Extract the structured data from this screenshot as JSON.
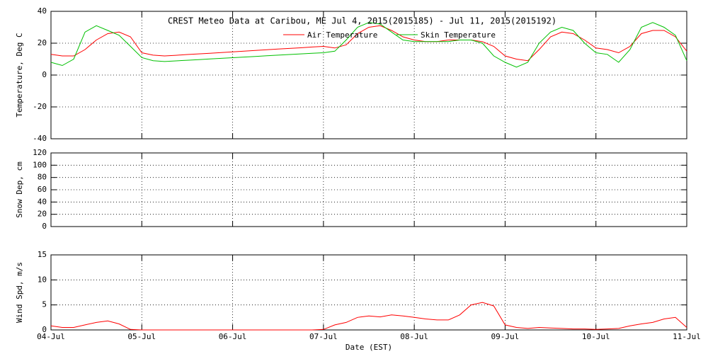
{
  "chart_data": [
    {
      "type": "line",
      "title": "CREST Meteo Data at Caribou, ME   Jul  4, 2015(2015185) - Jul 11, 2015(2015192)",
      "ylabel": "Temperature, Deg C",
      "ylim": [
        -40,
        40
      ],
      "yticks": [
        -40,
        -20,
        0,
        20,
        40
      ],
      "xlim": [
        0,
        7
      ],
      "grid": true,
      "legend": "top",
      "x": [
        0,
        0.125,
        0.25,
        0.375,
        0.5,
        0.625,
        0.75,
        0.875,
        1,
        1.125,
        1.25,
        1.375,
        1.5,
        1.625,
        1.75,
        1.875,
        2,
        2.125,
        2.25,
        2.375,
        2.5,
        2.625,
        2.75,
        2.875,
        3,
        3.125,
        3.25,
        3.375,
        3.5,
        3.625,
        3.75,
        3.875,
        4,
        4.125,
        4.25,
        4.375,
        4.5,
        4.625,
        4.75,
        4.875,
        5,
        5.125,
        5.25,
        5.375,
        5.5,
        5.625,
        5.75,
        5.875,
        6,
        6.125,
        6.25,
        6.375,
        6.5,
        6.625,
        6.75,
        6.875,
        7
      ],
      "series": [
        {
          "name": "Air Temperature",
          "color": "#ff0000",
          "values": [
            13,
            12,
            12,
            16,
            22,
            26,
            27,
            24,
            14,
            12.5,
            12,
            12.4,
            12.9,
            13.3,
            13.7,
            14.1,
            14.6,
            15.0,
            15.4,
            15.9,
            16.3,
            16.7,
            17.1,
            17.6,
            18,
            17,
            19,
            26,
            30,
            31,
            28,
            24,
            22,
            21,
            21,
            22,
            22,
            22,
            21,
            18,
            12,
            10,
            9,
            16,
            24,
            27,
            26,
            22,
            17,
            16,
            14,
            18,
            26,
            28,
            28,
            24,
            15
          ]
        },
        {
          "name": "Skin Temperature",
          "color": "#00c000",
          "values": [
            8,
            6,
            10,
            27,
            31,
            28,
            25,
            18,
            11,
            9,
            8.5,
            8.9,
            9.3,
            9.7,
            10.1,
            10.5,
            10.9,
            11.3,
            11.7,
            12.1,
            12.5,
            12.9,
            13.3,
            13.7,
            14,
            15,
            22,
            30,
            33,
            32,
            27,
            22,
            21,
            21,
            21,
            21,
            22,
            22,
            20,
            12,
            8,
            5,
            8,
            20,
            27,
            30,
            28,
            20,
            14,
            13,
            8,
            16,
            30,
            33,
            30,
            25,
            9
          ]
        }
      ]
    },
    {
      "type": "line",
      "ylabel": "Snow Dep, cm",
      "ylim": [
        0,
        120
      ],
      "yticks": [
        0,
        20,
        40,
        60,
        80,
        100,
        120
      ],
      "xlim": [
        0,
        7
      ],
      "grid": true,
      "series": []
    },
    {
      "type": "line",
      "ylabel": "Wind Spd, m/s",
      "xlabel": "Date (EST)",
      "ylim": [
        0,
        15
      ],
      "yticks": [
        0,
        5,
        10,
        15
      ],
      "xlim": [
        0,
        7
      ],
      "grid": true,
      "xticks": [
        {
          "value": 0,
          "label": "04-Jul"
        },
        {
          "value": 1,
          "label": "05-Jul"
        },
        {
          "value": 2,
          "label": "06-Jul"
        },
        {
          "value": 3,
          "label": "07-Jul"
        },
        {
          "value": 4,
          "label": "08-Jul"
        },
        {
          "value": 5,
          "label": "09-Jul"
        },
        {
          "value": 6,
          "label": "10-Jul"
        },
        {
          "value": 7,
          "label": "11-Jul"
        }
      ],
      "x": [
        0,
        0.125,
        0.25,
        0.375,
        0.5,
        0.625,
        0.75,
        0.875,
        1,
        1.125,
        1.25,
        1.375,
        1.5,
        1.625,
        1.75,
        1.875,
        2,
        2.125,
        2.25,
        2.375,
        2.5,
        2.625,
        2.75,
        2.875,
        3,
        3.125,
        3.25,
        3.375,
        3.5,
        3.625,
        3.75,
        3.875,
        4,
        4.125,
        4.25,
        4.375,
        4.5,
        4.625,
        4.75,
        4.875,
        5,
        5.125,
        5.25,
        5.375,
        5.5,
        5.625,
        5.75,
        5.875,
        6,
        6.125,
        6.25,
        6.375,
        6.5,
        6.625,
        6.75,
        6.875,
        7
      ],
      "series": [
        {
          "color": "#ff0000",
          "values": [
            0.8,
            0.5,
            0.5,
            1,
            1.5,
            1.8,
            1.2,
            0.1,
            0,
            0,
            0,
            0,
            0,
            0,
            0,
            0,
            0,
            0,
            0,
            0,
            0,
            0,
            0,
            0,
            0.1,
            1,
            1.5,
            2.5,
            2.8,
            2.6,
            3,
            2.8,
            2.5,
            2.2,
            2,
            2,
            3,
            5,
            5.5,
            4.8,
            1,
            0.5,
            0.3,
            0.5,
            0.4,
            0.3,
            0.2,
            0.2,
            0.1,
            0.2,
            0.3,
            0.8,
            1.2,
            1.5,
            2.2,
            2.5,
            0.5
          ]
        }
      ]
    }
  ]
}
